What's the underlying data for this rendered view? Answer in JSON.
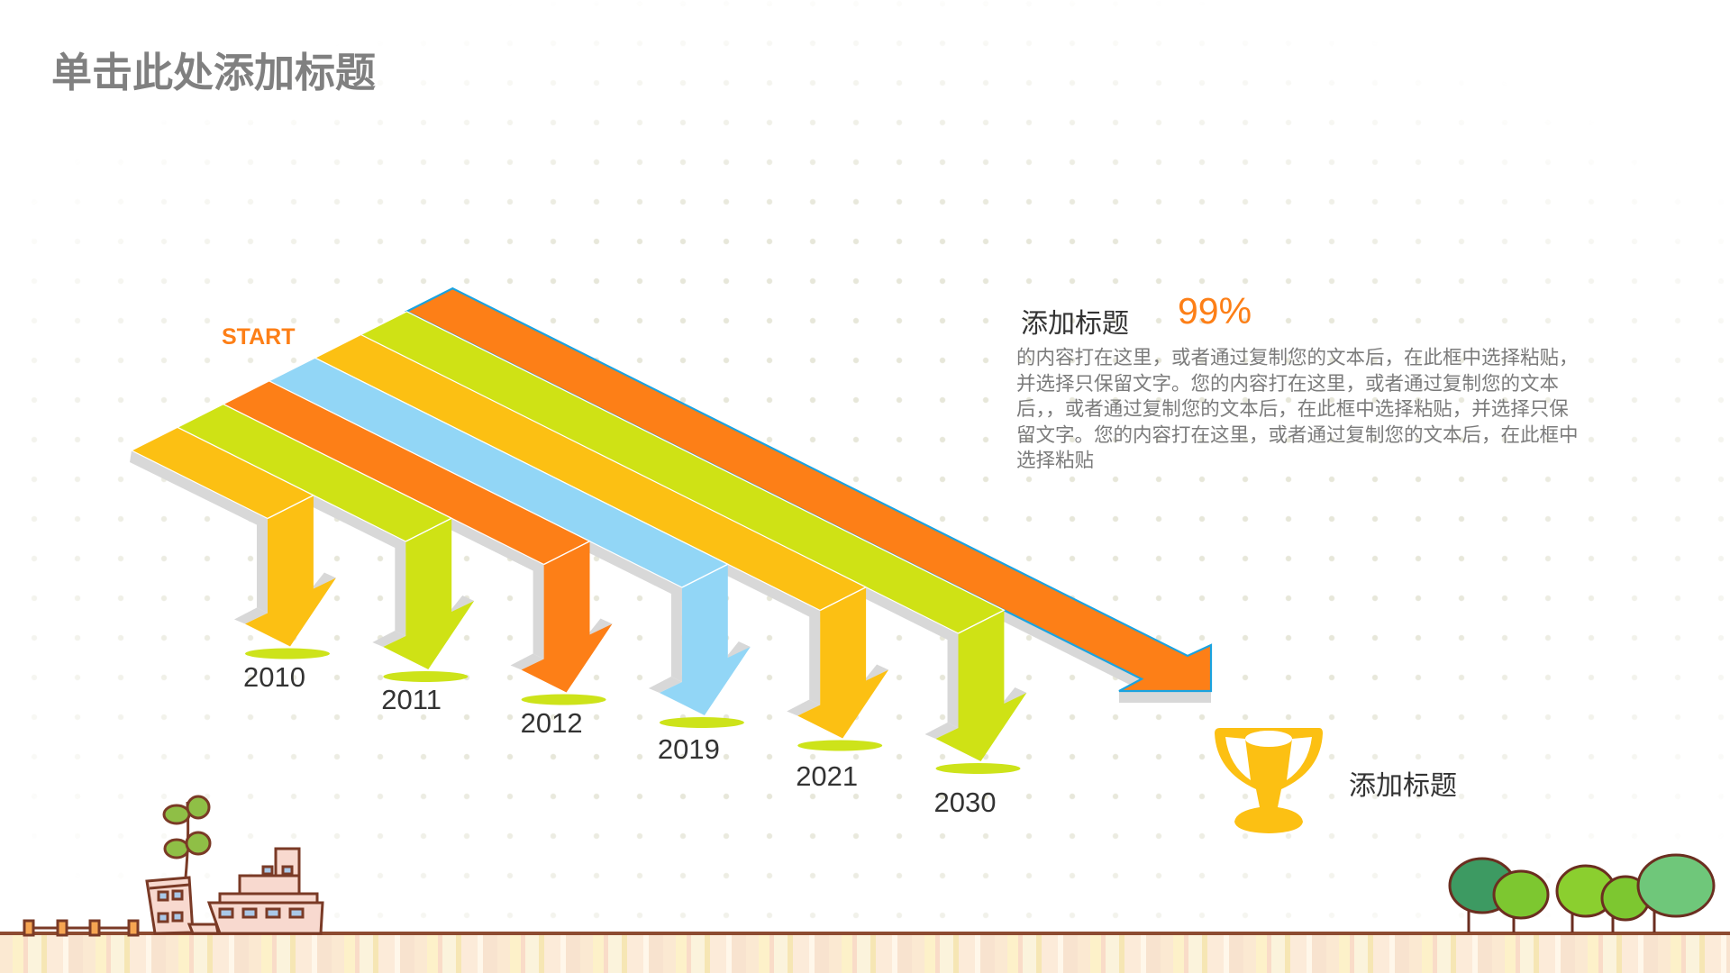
{
  "slide": {
    "title": "单击此处添加标题",
    "start_label": "START"
  },
  "timeline": {
    "colors": {
      "yellow": "#fcc013",
      "green": "#cfe215",
      "orange": "#fd7f17",
      "blue": "#92d6f6",
      "shadow": "#d8d8d8",
      "outline": "#1aa3e0",
      "ellipse": "#cde31a"
    },
    "milestones": [
      {
        "year": "2010",
        "color": "#fcc013"
      },
      {
        "year": "2011",
        "color": "#cfe215"
      },
      {
        "year": "2012",
        "color": "#fd7f17"
      },
      {
        "year": "2019",
        "color": "#92d6f6"
      },
      {
        "year": "2021",
        "color": "#fcc013"
      },
      {
        "year": "2030",
        "color": "#cfe215"
      }
    ],
    "final_bar_color": "#fd7f17"
  },
  "info": {
    "title": "添加标题",
    "percent": "99%",
    "body_lines": [
      "的内容打在这里，或者通过复制您的文本后，在此框中选择粘贴，",
      "并选择只保留文字。您的内容打在这里，或者通过复制您的文本",
      "后，，或者通过复制您的文本后，在此框中选择粘贴，并选择只保",
      "留文字。您的内容打在这里，或者通过复制您的文本后，在此框中",
      "选择粘贴"
    ]
  },
  "goal": {
    "icon": "trophy-icon",
    "label": "添加标题",
    "color": "#fcc013"
  },
  "decorations": {
    "left": "fence-building-ship-sprout",
    "right": "tree-cluster",
    "ground_line_color": "#8d4b31"
  }
}
